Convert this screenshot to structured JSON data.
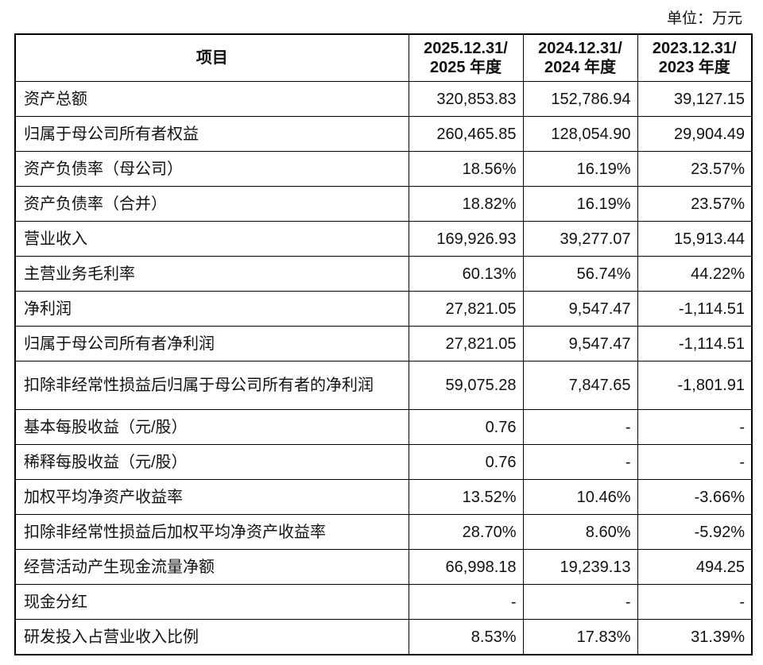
{
  "unit": "单位：万元",
  "table": {
    "header": [
      "项目",
      [
        "2025.12.31/",
        "2025 年度"
      ],
      [
        "2024.12.31/",
        "2024 年度"
      ],
      [
        "2023.12.31/",
        "2023 年度"
      ]
    ],
    "rows": [
      [
        "资产总额",
        "320,853.83",
        "152,786.94",
        "39,127.15"
      ],
      [
        "归属于母公司所有者权益",
        "260,465.85",
        "128,054.90",
        "29,904.49"
      ],
      [
        "资产负债率（母公司）",
        "18.56%",
        "16.19%",
        "23.57%"
      ],
      [
        "资产负债率（合并）",
        "18.82%",
        "16.19%",
        "23.57%"
      ],
      [
        "营业收入",
        "169,926.93",
        "39,277.07",
        "15,913.44"
      ],
      [
        "主营业务毛利率",
        "60.13%",
        "56.74%",
        "44.22%"
      ],
      [
        "净利润",
        "27,821.05",
        "9,547.47",
        "-1,114.51"
      ],
      [
        "归属于母公司所有者净利润",
        "27,821.05",
        "9,547.47",
        "-1,114.51"
      ],
      [
        "扣除非经常性损益后归属于母公司所有者的净利润",
        "59,075.28",
        "7,847.65",
        "-1,801.91"
      ],
      [
        "基本每股收益（元/股）",
        "0.76",
        "-",
        "-"
      ],
      [
        "稀释每股收益（元/股）",
        "0.76",
        "-",
        "-"
      ],
      [
        "加权平均净资产收益率",
        "13.52%",
        "10.46%",
        "-3.66%"
      ],
      [
        "扣除非经常性损益后加权平均净资产收益率",
        "28.70%",
        "8.60%",
        "-5.92%"
      ],
      [
        "经营活动产生现金流量净额",
        "66,998.18",
        "19,239.13",
        "494.25"
      ],
      [
        "现金分红",
        "-",
        "-",
        "-"
      ],
      [
        "研发投入占营业收入比例",
        "8.53%",
        "17.83%",
        "31.39%"
      ]
    ]
  }
}
